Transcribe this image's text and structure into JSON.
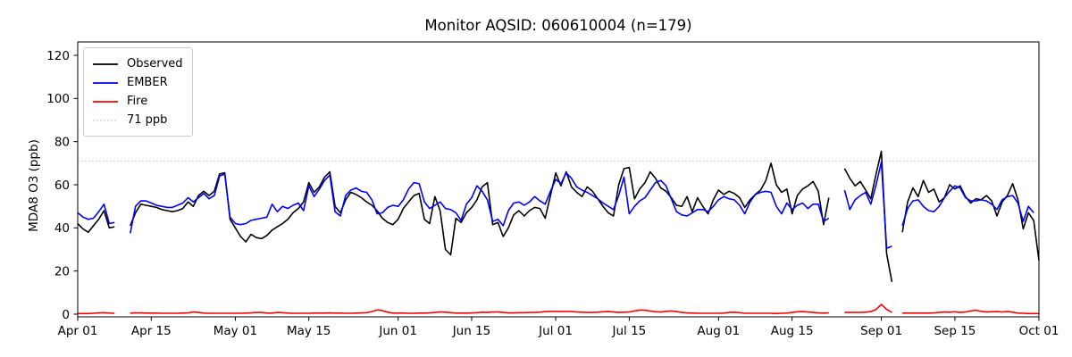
{
  "chart_data": {
    "type": "line",
    "title": "Monitor AQSID: 060610004 (n=179)",
    "ylabel": "MDA8 O3 (ppb)",
    "xlabel": "",
    "yticks": [
      0,
      20,
      40,
      60,
      80,
      100,
      120
    ],
    "ylim": [
      -1.3,
      126.3
    ],
    "x_tick_labels": [
      "Apr 01",
      "Apr 15",
      "May 01",
      "May 15",
      "Jun 01",
      "Jun 15",
      "Jul 01",
      "Jul 15",
      "Aug 01",
      "Aug 15",
      "Sep 01",
      "Sep 15",
      "Oct 01"
    ],
    "x_tick_days": [
      0,
      14,
      30,
      44,
      61,
      75,
      91,
      105,
      122,
      136,
      153,
      167,
      183
    ],
    "x_span_days": 183,
    "grid": false,
    "legend_position": "upper left",
    "threshold": {
      "value": 71,
      "label": "71 ppb",
      "color": "#cfcfcf",
      "style": "dotted"
    },
    "legend": [
      {
        "name": "Observed",
        "color": "#000000",
        "style": "solid"
      },
      {
        "name": "EMBER",
        "color": "#0000ff",
        "style": "solid"
      },
      {
        "name": "Fire",
        "color": "#ff0000",
        "style": "solid"
      },
      {
        "name": "71 ppb",
        "color": "#cfcfcf",
        "style": "dotted"
      }
    ],
    "series": [
      {
        "name": "Observed",
        "color": "#000000",
        "values": [
          42,
          39.5,
          38,
          41,
          44,
          48,
          40,
          40.5,
          null,
          null,
          41,
          47,
          51,
          50.5,
          50,
          49.5,
          48.5,
          48,
          47.5,
          48,
          49,
          52,
          50,
          55,
          57,
          55,
          57,
          65,
          65.5,
          44,
          40,
          36,
          33.5,
          37,
          35.5,
          35,
          36.5,
          39,
          40.5,
          42,
          44,
          47,
          49,
          52,
          61,
          56.5,
          59,
          63.5,
          66,
          50,
          47,
          53,
          56.5,
          55.5,
          54,
          52,
          50.5,
          48,
          44.5,
          42.5,
          41.5,
          44,
          49,
          52,
          55,
          56,
          44,
          42,
          54.5,
          48,
          30,
          27.5,
          44.5,
          42.5,
          47,
          49.5,
          53,
          59,
          61,
          41.5,
          42.5,
          36,
          40,
          46,
          48,
          45.5,
          48,
          49.5,
          49,
          44.5,
          55,
          65.5,
          59.5,
          66,
          59,
          56.5,
          54.5,
          59,
          57,
          53.5,
          50,
          47,
          45.5,
          60,
          67.5,
          68,
          53.5,
          58,
          61,
          66,
          63,
          58.5,
          57,
          54,
          50.5,
          50,
          54.5,
          47.5,
          54,
          50,
          46.5,
          53,
          57.5,
          55.5,
          57,
          56,
          54,
          49.5,
          53,
          55.5,
          57.5,
          62,
          70,
          60,
          56.5,
          58,
          46.5,
          55,
          58,
          59.5,
          61.5,
          57,
          41.5,
          54,
          null,
          null,
          67.5,
          63,
          59.5,
          61.5,
          57.5,
          53.5,
          65,
          75.5,
          28,
          15,
          null,
          38,
          52,
          58.5,
          54.5,
          62,
          56.5,
          58,
          52,
          54,
          60,
          58,
          59.5,
          54.5,
          51.5,
          53.5,
          53,
          55,
          52.5,
          45.5,
          52,
          55,
          60.5,
          53,
          39.5,
          47,
          43.5,
          25
        ]
      },
      {
        "name": "EMBER",
        "color": "#0000ff",
        "values": [
          47,
          45,
          44,
          44.5,
          47.5,
          51,
          42,
          42.5,
          null,
          null,
          37.5,
          50,
          52.5,
          52.5,
          51.5,
          50.5,
          50,
          49.5,
          49.5,
          50.5,
          51.5,
          54,
          52,
          54,
          56,
          53.5,
          55,
          64,
          65,
          45,
          42,
          41.5,
          42,
          43.5,
          44,
          44.5,
          45,
          51,
          47.5,
          50,
          49,
          50.5,
          51.5,
          48,
          59.5,
          54.5,
          58,
          62,
          64.5,
          47.5,
          45.5,
          55,
          57.5,
          58.5,
          57,
          56.5,
          53,
          46.5,
          47,
          49.5,
          50.5,
          50,
          53,
          58,
          61,
          60.5,
          52,
          49,
          50.5,
          52,
          49,
          48.5,
          47,
          43.5,
          51,
          54,
          59.5,
          57,
          53,
          43,
          44,
          41,
          48,
          51.5,
          52,
          50.5,
          52,
          54.5,
          52.5,
          51,
          57,
          62.5,
          60.5,
          65.5,
          63,
          59,
          57.5,
          56.5,
          55,
          53.5,
          51.5,
          50,
          48.5,
          55,
          63.5,
          46.5,
          50,
          52.5,
          54,
          57.5,
          61,
          62,
          59.5,
          53.5,
          47.5,
          46,
          45.5,
          47,
          48.5,
          48.5,
          47.5,
          50,
          53,
          54.5,
          53.5,
          53,
          50.5,
          46.5,
          52,
          55.5,
          56.5,
          57,
          56.5,
          50,
          46.5,
          51.5,
          48.5,
          50.5,
          51.5,
          49,
          51,
          51,
          43,
          44.5,
          null,
          null,
          57.5,
          48.5,
          53,
          55,
          56.5,
          51,
          60,
          70.5,
          30.5,
          31.5,
          null,
          41,
          49,
          52.5,
          53,
          50,
          48,
          47.5,
          50,
          54,
          57,
          59.5,
          58.5,
          54,
          52.5,
          52.5,
          53,
          52.5,
          51,
          48.5,
          53,
          54.5,
          55,
          51.5,
          43,
          50,
          47,
          null
        ]
      },
      {
        "name": "Fire",
        "color": "#ff0000",
        "values": [
          0.3,
          0.3,
          0.3,
          0.4,
          0.6,
          0.7,
          0.5,
          0.4,
          null,
          null,
          0.5,
          0.6,
          0.6,
          0.5,
          0.5,
          0.5,
          0.4,
          0.4,
          0.4,
          0.4,
          0.5,
          0.6,
          1.0,
          0.8,
          0.5,
          0.4,
          0.4,
          0.4,
          0.4,
          0.4,
          0.4,
          0.4,
          0.5,
          0.6,
          0.8,
          0.8,
          0.5,
          0.5,
          0.8,
          0.7,
          0.5,
          0.4,
          0.4,
          0.4,
          0.4,
          0.5,
          0.5,
          0.5,
          0.6,
          0.5,
          0.5,
          0.4,
          0.4,
          0.5,
          0.6,
          0.7,
          1.2,
          2.0,
          1.6,
          0.9,
          0.5,
          0.5,
          0.5,
          0.4,
          0.4,
          0.5,
          0.5,
          0.6,
          0.8,
          1.0,
          0.9,
          0.7,
          0.5,
          0.5,
          0.5,
          0.6,
          0.7,
          0.9,
          0.8,
          1.0,
          1.0,
          0.8,
          0.6,
          0.6,
          0.7,
          0.7,
          0.8,
          0.8,
          0.9,
          1.2,
          1.3,
          1.3,
          1.2,
          1.3,
          1.2,
          1.0,
          0.9,
          0.8,
          0.8,
          0.9,
          1.1,
          1.2,
          1.0,
          0.8,
          0.9,
          1.0,
          1.5,
          1.9,
          1.8,
          1.4,
          1.1,
          1.0,
          1.3,
          1.5,
          1.2,
          0.8,
          0.6,
          0.5,
          0.4,
          0.4,
          0.4,
          0.4,
          0.4,
          0.5,
          0.8,
          0.9,
          0.7,
          0.4,
          0.4,
          0.4,
          0.4,
          0.4,
          0.4,
          0.3,
          0.4,
          0.5,
          0.8,
          1.1,
          1.2,
          1.0,
          0.8,
          0.6,
          0.5,
          0.6,
          null,
          null,
          0.8,
          0.8,
          0.8,
          0.8,
          0.9,
          1.2,
          2.2,
          4.5,
          2.2,
          0.8,
          null,
          0.5,
          0.5,
          0.5,
          0.5,
          0.5,
          0.5,
          0.6,
          0.8,
          1.0,
          0.9,
          1.1,
          0.8,
          1.0,
          1.5,
          1.8,
          1.3,
          1.0,
          1.1,
          1.2,
          1.0,
          1.2,
          0.9,
          0.5,
          0.4,
          0.3,
          0.3,
          0.3
        ]
      }
    ]
  }
}
